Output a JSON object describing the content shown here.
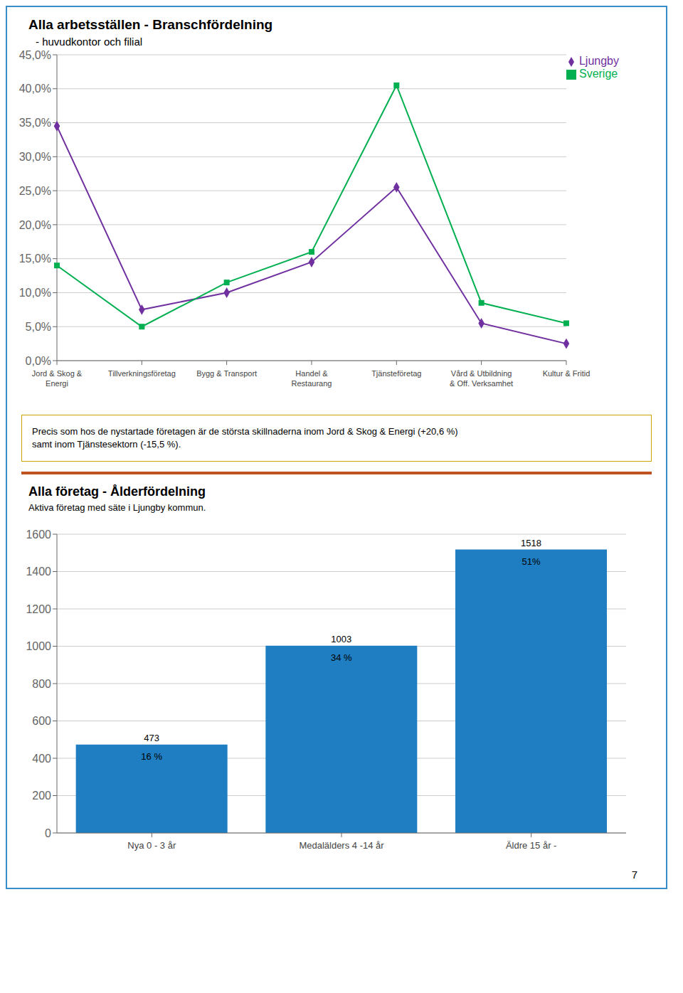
{
  "chart_data": [
    {
      "type": "line",
      "title": "Alla arbetsställen - Branschfördelning",
      "subtitle": "- huvudkontor och filial",
      "categories": [
        "Jord & Skog &\nEnergi",
        "Tillverkningsföretag",
        "Bygg & Transport",
        "Handel &\nRestaurang",
        "Tjänsteföretag",
        "Vård & Utbildning\n& Off. Verksamhet",
        "Kultur & Fritid"
      ],
      "series": [
        {
          "name": "Ljungby",
          "color": "#7030A0",
          "marker": "diamond",
          "values": [
            34.5,
            7.5,
            10.0,
            14.5,
            25.5,
            5.5,
            2.5
          ]
        },
        {
          "name": "Sverige",
          "color": "#00B050",
          "marker": "square",
          "values": [
            14.0,
            5.0,
            11.5,
            16.0,
            40.5,
            8.5,
            5.5
          ]
        }
      ],
      "ylim": [
        0,
        45
      ],
      "yticks": [
        {
          "value": 0,
          "label": "0,0%"
        },
        {
          "value": 5,
          "label": "5,0%"
        },
        {
          "value": 10,
          "label": "10,0%"
        },
        {
          "value": 15,
          "label": "15,0%"
        },
        {
          "value": 20,
          "label": "20,0%"
        },
        {
          "value": 25,
          "label": "25,0%"
        },
        {
          "value": 30,
          "label": "30,0%"
        },
        {
          "value": 35,
          "label": "35,0%"
        },
        {
          "value": 40,
          "label": "40,0%"
        },
        {
          "value": 45,
          "label": "45,0%"
        }
      ],
      "grid": true,
      "legend": "upper right",
      "annotations": [
        "Precis som hos de nystartade företagen är de största skillnaderna inom Jord & Skog & Energi (+20,6 %)\nsamt inom Tjänstesektorn (-15,5 %)."
      ]
    },
    {
      "type": "bar",
      "title": "Alla företag - Ålderfördelning",
      "subtitle": "Aktiva företag med säte i Ljungby kommun.",
      "categories": [
        "Nya 0 - 3 år",
        "Medalälders 4 -14 år",
        "Äldre 15 år -"
      ],
      "values": [
        473,
        1003,
        1518
      ],
      "share_labels": [
        "16 %",
        "34 %",
        "51%"
      ],
      "color": "#1F7EC2",
      "data_labels": true,
      "ylim": [
        0,
        1600
      ],
      "yticks": [
        0,
        200,
        400,
        600,
        800,
        1000,
        1200,
        1400,
        1600
      ],
      "grid": true,
      "annotations": [
        "7"
      ]
    }
  ]
}
